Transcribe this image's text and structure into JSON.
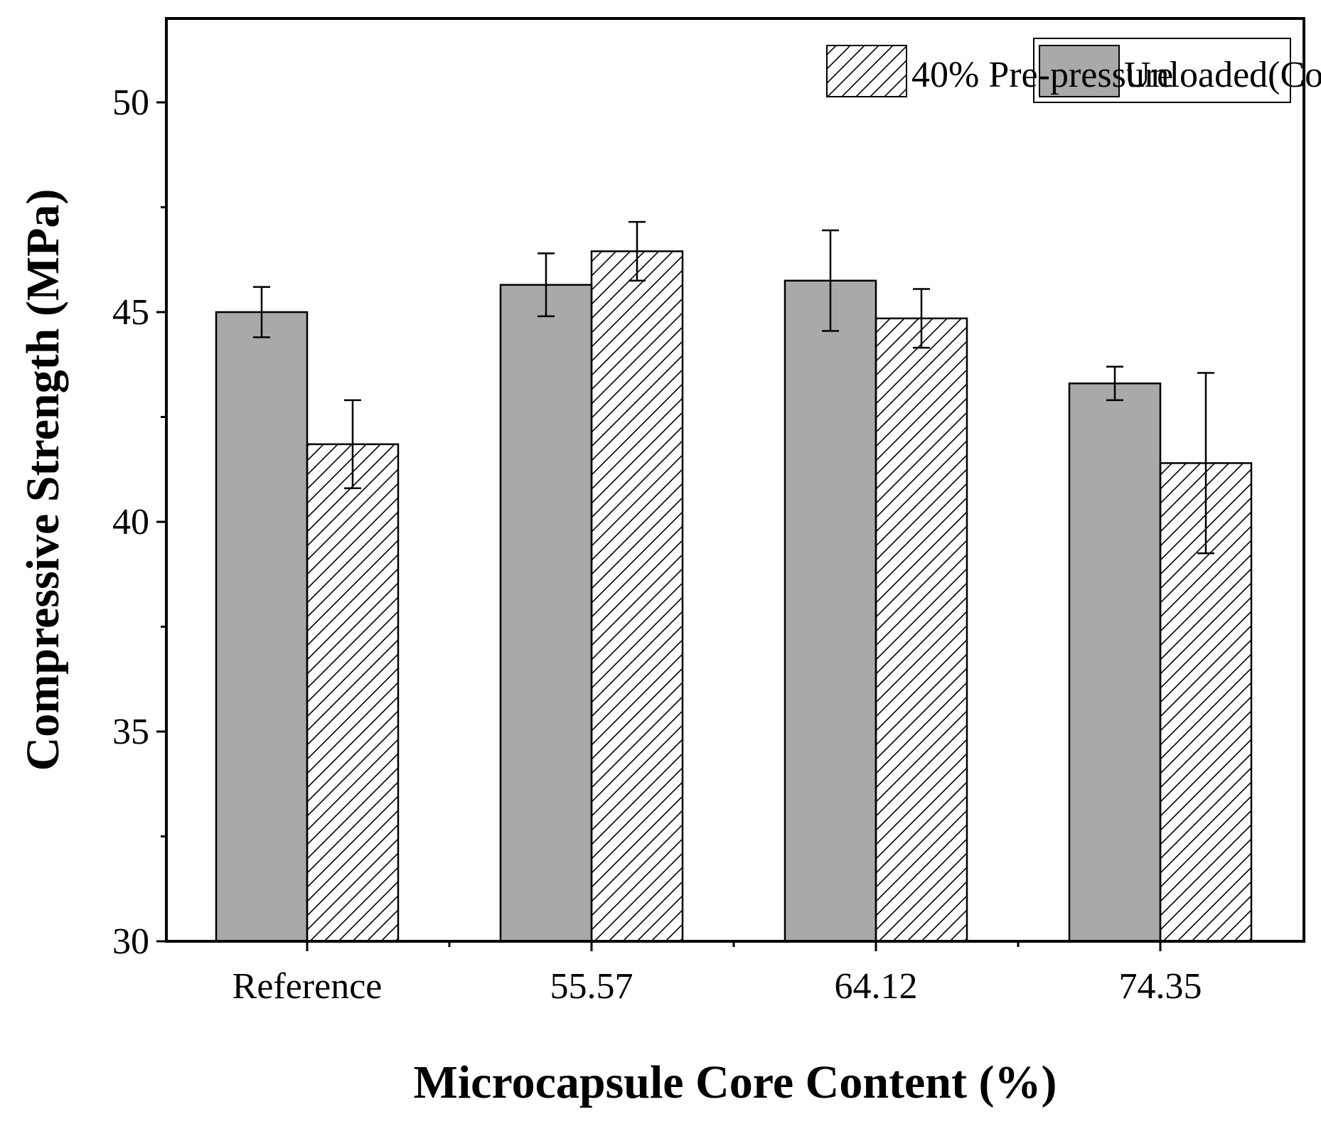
{
  "chart_data": {
    "type": "bar",
    "title": "",
    "xlabel": "Microcapsule Core Content (%)",
    "ylabel": "Compressive Strength (MPa)",
    "ylim": [
      30,
      52
    ],
    "yticks": [
      30,
      35,
      40,
      45,
      50
    ],
    "ytick_labels": [
      "30",
      "35",
      "40",
      "45",
      "50"
    ],
    "categories": [
      "Reference",
      "55.57",
      "64.12",
      "74.35"
    ],
    "series": [
      {
        "name": "Unloaded(Control)",
        "fill": "#a9a9a9",
        "pattern": "solid",
        "values": [
          45.0,
          45.65,
          45.75,
          43.3
        ],
        "errors": [
          0.6,
          0.75,
          1.2,
          0.4
        ]
      },
      {
        "name": "40% Pre-pressure",
        "fill": "#ffffff",
        "pattern": "hatch",
        "values": [
          41.85,
          46.45,
          44.85,
          41.4
        ],
        "errors": [
          1.05,
          0.7,
          0.7,
          2.15
        ]
      }
    ],
    "legend_position": "top-right",
    "grid": false
  }
}
